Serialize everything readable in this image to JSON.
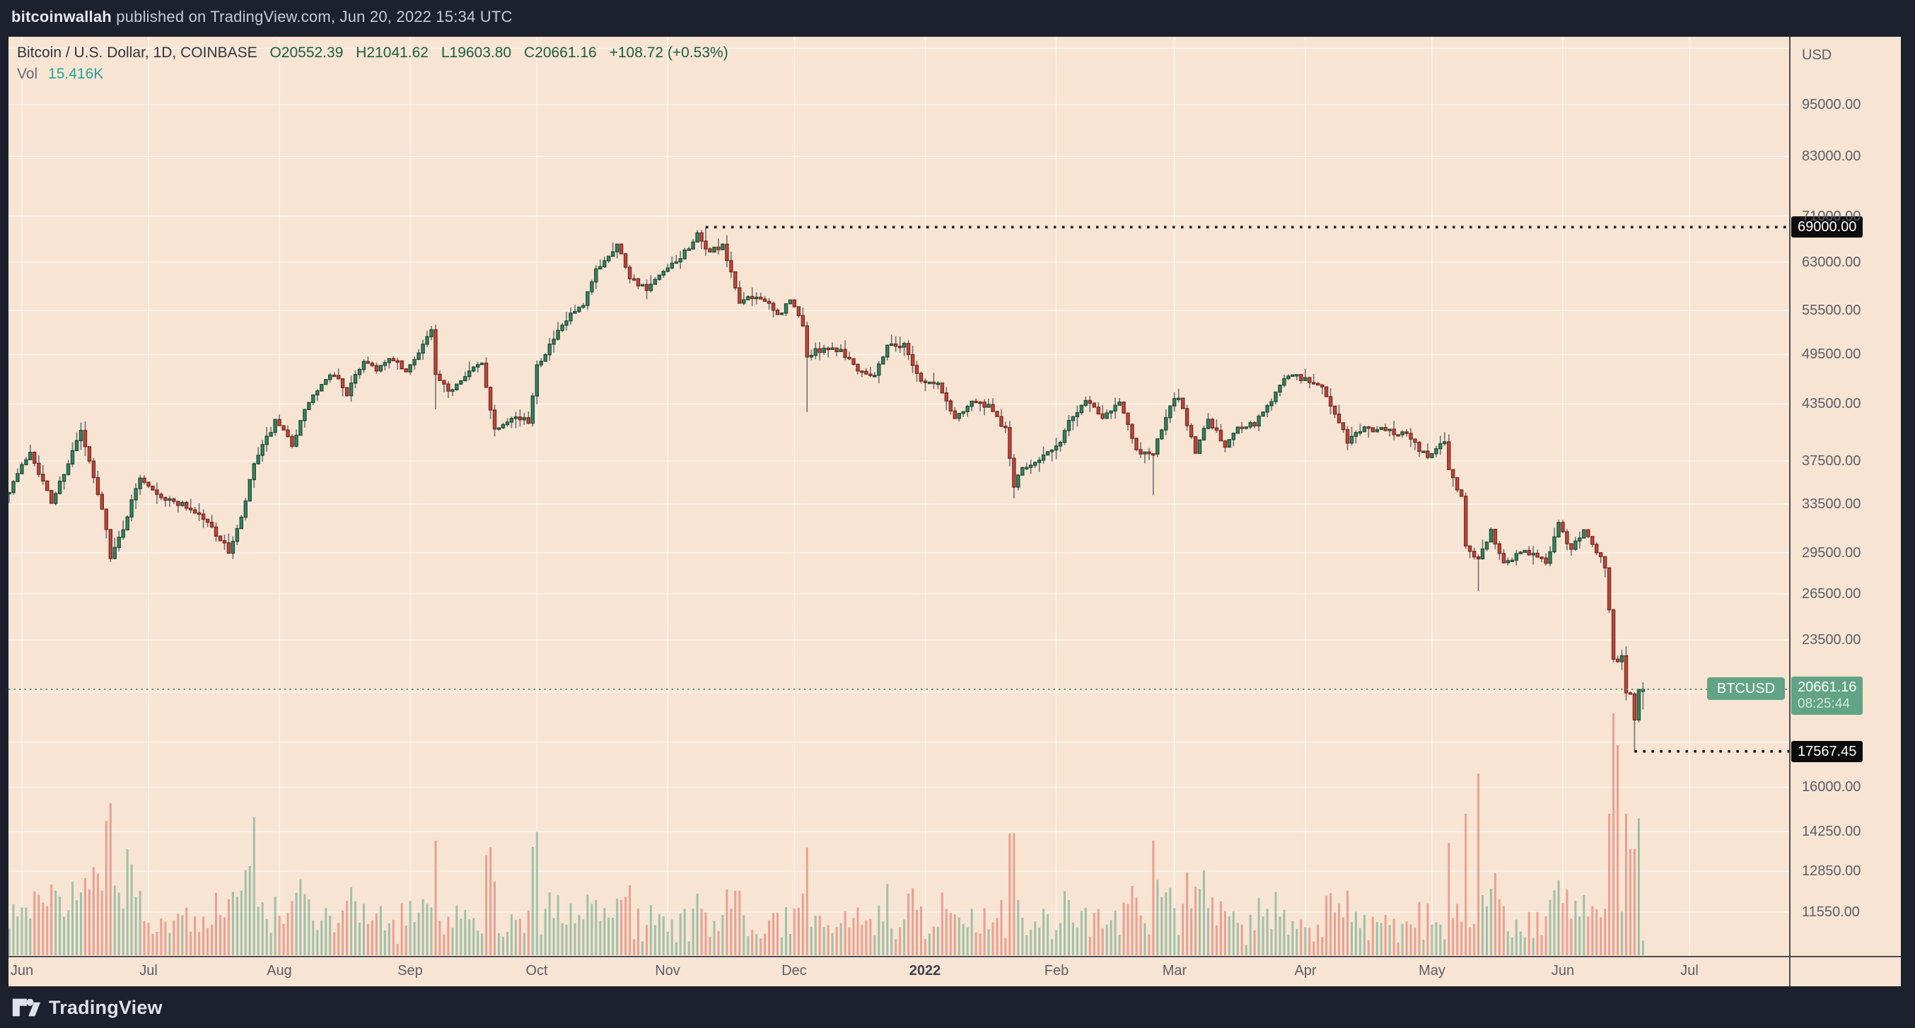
{
  "topbar": {
    "author": "bitcoinwallah",
    "rest": " published on TradingView.com, Jun 20, 2022 15:34 UTC"
  },
  "legend": {
    "symbol": "Bitcoin / U.S. Dollar, 1D, COINBASE",
    "open": "O20552.39",
    "high": "H21041.62",
    "low": "L19603.80",
    "close": "C20661.16",
    "change": "+108.72 (+0.53%)",
    "volume_label": "Vol",
    "volume_value": "15.416K"
  },
  "price_scale": {
    "currency": "USD",
    "ath_label": "69000.00",
    "low_label": "17567.45",
    "last_price_label": "20661.16",
    "countdown_label": "08:25:44",
    "symbol_flag": "BTCUSD"
  },
  "footer": {
    "brand": "TradingView"
  },
  "colors": {
    "page_bg": "#1d212d",
    "panel_bg": "#f7e4d3",
    "grid": "rgba(255,255,255,0.55)",
    "up_body": "#3a8565",
    "up_border": "#1e5038",
    "down_body": "#bf4b40",
    "down_border": "#7e291f",
    "wick": "#6e7076",
    "vol_up": "rgba(74,156,125,0.5)",
    "vol_down": "rgba(224,90,77,0.5)",
    "dotted_black": "#141414",
    "price_line_green": "#55a07c",
    "axis_text": "#5b5f6a"
  },
  "chart_data": {
    "type": "candlestick_with_volume",
    "title": "Bitcoin / U.S. Dollar",
    "symbol": "BTCUSD",
    "exchange": "COINBASE",
    "interval": "1D",
    "y_scale": "log",
    "start_date": "2021-05-29",
    "days": 388,
    "y_ticks": [
      95000,
      83000,
      71000,
      63000,
      55500,
      49500,
      43500,
      37500,
      33500,
      29500,
      26500,
      23500,
      16000,
      14250,
      12850,
      11550
    ],
    "y_grid_only": [
      110000,
      20500,
      18000
    ],
    "x_labels": [
      {
        "text": "Jun",
        "date": "2021-06-01"
      },
      {
        "text": "Jul",
        "date": "2021-07-01"
      },
      {
        "text": "Aug",
        "date": "2021-08-01"
      },
      {
        "text": "Sep",
        "date": "2021-09-01"
      },
      {
        "text": "Oct",
        "date": "2021-10-01"
      },
      {
        "text": "Nov",
        "date": "2021-11-01"
      },
      {
        "text": "Dec",
        "date": "2021-12-01"
      },
      {
        "text": "2022",
        "date": "2022-01-01",
        "bold": true
      },
      {
        "text": "Feb",
        "date": "2022-02-01"
      },
      {
        "text": "Mar",
        "date": "2022-03-01"
      },
      {
        "text": "Apr",
        "date": "2022-04-01"
      },
      {
        "text": "May",
        "date": "2022-05-01"
      },
      {
        "text": "Jun",
        "date": "2022-06-01"
      },
      {
        "text": "Jul",
        "date": "2022-07-01"
      }
    ],
    "key_levels": {
      "all_time_high": 69000.0,
      "all_time_high_date": "2021-11-10",
      "june_low": 17567.45,
      "june_low_date": "2022-06-18",
      "last_price": 20661.16
    },
    "last_candle": {
      "open": 20552.39,
      "high": 21041.62,
      "low": 19603.8,
      "close": 20661.16,
      "change": 108.72,
      "change_pct": 0.53,
      "volume": "15.416K"
    },
    "countdown": "08:25:44",
    "waypoints": [
      [
        "2021-05-29",
        34800
      ],
      [
        "2021-06-03",
        38500
      ],
      [
        "2021-06-08",
        33600
      ],
      [
        "2021-06-15",
        40500
      ],
      [
        "2021-06-21",
        31600
      ],
      [
        "2021-06-22",
        29000
      ],
      [
        "2021-06-25",
        31500
      ],
      [
        "2021-06-29",
        36000
      ],
      [
        "2021-07-05",
        33900
      ],
      [
        "2021-07-09",
        33500
      ],
      [
        "2021-07-13",
        32600
      ],
      [
        "2021-07-16",
        31500
      ],
      [
        "2021-07-20",
        29600
      ],
      [
        "2021-07-23",
        32200
      ],
      [
        "2021-07-26",
        37200
      ],
      [
        "2021-07-31",
        41500
      ],
      [
        "2021-08-04",
        39200
      ],
      [
        "2021-08-08",
        43800
      ],
      [
        "2021-08-11",
        45600
      ],
      [
        "2021-08-14",
        47100
      ],
      [
        "2021-08-17",
        44700
      ],
      [
        "2021-08-21",
        48800
      ],
      [
        "2021-08-24",
        47700
      ],
      [
        "2021-08-28",
        48900
      ],
      [
        "2021-08-31",
        47100
      ],
      [
        "2021-09-03",
        50000
      ],
      [
        "2021-09-06",
        52700
      ],
      [
        "2021-09-07",
        46800
      ],
      [
        "2021-09-10",
        44800
      ],
      [
        "2021-09-14",
        47100
      ],
      [
        "2021-09-18",
        48300
      ],
      [
        "2021-09-21",
        40700
      ],
      [
        "2021-09-25",
        42200
      ],
      [
        "2021-09-29",
        41500
      ],
      [
        "2021-10-01",
        48200
      ],
      [
        "2021-10-05",
        51500
      ],
      [
        "2021-10-09",
        54900
      ],
      [
        "2021-10-12",
        56000
      ],
      [
        "2021-10-15",
        61700
      ],
      [
        "2021-10-20",
        66000
      ],
      [
        "2021-10-23",
        60700
      ],
      [
        "2021-10-27",
        58500
      ],
      [
        "2021-10-31",
        61300
      ],
      [
        "2021-11-03",
        62900
      ],
      [
        "2021-11-08",
        67500
      ],
      [
        "2021-11-10",
        64900
      ],
      [
        "2021-11-14",
        65500
      ],
      [
        "2021-11-18",
        56900
      ],
      [
        "2021-11-23",
        57600
      ],
      [
        "2021-11-27",
        54700
      ],
      [
        "2021-11-30",
        57000
      ],
      [
        "2021-12-03",
        53600
      ],
      [
        "2021-12-04",
        49200
      ],
      [
        "2021-12-08",
        50500
      ],
      [
        "2021-12-12",
        50100
      ],
      [
        "2021-12-16",
        47700
      ],
      [
        "2021-12-20",
        46900
      ],
      [
        "2021-12-23",
        50800
      ],
      [
        "2021-12-27",
        50700
      ],
      [
        "2021-12-31",
        46200
      ],
      [
        "2022-01-04",
        45800
      ],
      [
        "2022-01-08",
        41900
      ],
      [
        "2022-01-12",
        43900
      ],
      [
        "2022-01-16",
        43100
      ],
      [
        "2022-01-20",
        40700
      ],
      [
        "2022-01-22",
        35100
      ],
      [
        "2022-01-24",
        36700
      ],
      [
        "2022-01-28",
        37800
      ],
      [
        "2022-02-01",
        38700
      ],
      [
        "2022-02-04",
        41500
      ],
      [
        "2022-02-08",
        44100
      ],
      [
        "2022-02-12",
        42200
      ],
      [
        "2022-02-16",
        43900
      ],
      [
        "2022-02-20",
        38400
      ],
      [
        "2022-02-24",
        38300
      ],
      [
        "2022-02-28",
        43200
      ],
      [
        "2022-03-02",
        44400
      ],
      [
        "2022-03-06",
        38400
      ],
      [
        "2022-03-09",
        42000
      ],
      [
        "2022-03-13",
        38800
      ],
      [
        "2022-03-16",
        41100
      ],
      [
        "2022-03-20",
        41300
      ],
      [
        "2022-03-24",
        44000
      ],
      [
        "2022-03-28",
        47100
      ],
      [
        "2022-04-01",
        46300
      ],
      [
        "2022-04-05",
        45500
      ],
      [
        "2022-04-11",
        39500
      ],
      [
        "2022-04-14",
        40600
      ],
      [
        "2022-04-18",
        40800
      ],
      [
        "2022-04-21",
        40500
      ],
      [
        "2022-04-25",
        40400
      ],
      [
        "2022-04-30",
        37700
      ],
      [
        "2022-05-04",
        39700
      ],
      [
        "2022-05-05",
        36600
      ],
      [
        "2022-05-08",
        34100
      ],
      [
        "2022-05-09",
        30100
      ],
      [
        "2022-05-12",
        29000
      ],
      [
        "2022-05-15",
        31300
      ],
      [
        "2022-05-18",
        28700
      ],
      [
        "2022-05-21",
        29400
      ],
      [
        "2022-05-25",
        29600
      ],
      [
        "2022-05-28",
        28600
      ],
      [
        "2022-05-31",
        31800
      ],
      [
        "2022-06-03",
        29700
      ],
      [
        "2022-06-06",
        31400
      ],
      [
        "2022-06-10",
        29100
      ],
      [
        "2022-06-11",
        28400
      ],
      [
        "2022-06-13",
        22500
      ],
      [
        "2022-06-14",
        22100
      ],
      [
        "2022-06-15",
        22600
      ],
      [
        "2022-06-16",
        20400
      ],
      [
        "2022-06-17",
        20450
      ],
      [
        "2022-06-18",
        19000
      ],
      [
        "2022-06-19",
        20550
      ],
      [
        "2022-06-20",
        20661.16
      ]
    ],
    "anchors": {
      "2021-06-22": {
        "low": 28800
      },
      "2021-09-07": {
        "low": 42900
      },
      "2021-11-10": {
        "high": 69000
      },
      "2021-12-04": {
        "low": 42600
      },
      "2022-01-22": {
        "low": 34000
      },
      "2022-02-24": {
        "low": 34300
      },
      "2022-05-12": {
        "low": 26700
      },
      "2022-06-18": {
        "low": 17567.45
      },
      "2022-06-20": {
        "open": 20552.39,
        "high": 21041.62,
        "low": 19603.8,
        "close": 20661.16
      }
    },
    "volume_spikes": [
      [
        "2021-06-21",
        190
      ],
      [
        "2021-06-22",
        215
      ],
      [
        "2021-06-26",
        150
      ],
      [
        "2021-07-26",
        195
      ],
      [
        "2021-09-07",
        162
      ],
      [
        "2021-12-04",
        152
      ],
      [
        "2022-01-21",
        172
      ],
      [
        "2022-02-24",
        162
      ],
      [
        "2022-03-08",
        120
      ],
      [
        "2022-05-12",
        257
      ],
      [
        "2022-06-13",
        342
      ],
      [
        "2022-06-14",
        297
      ],
      [
        "2022-06-17",
        150
      ]
    ]
  }
}
